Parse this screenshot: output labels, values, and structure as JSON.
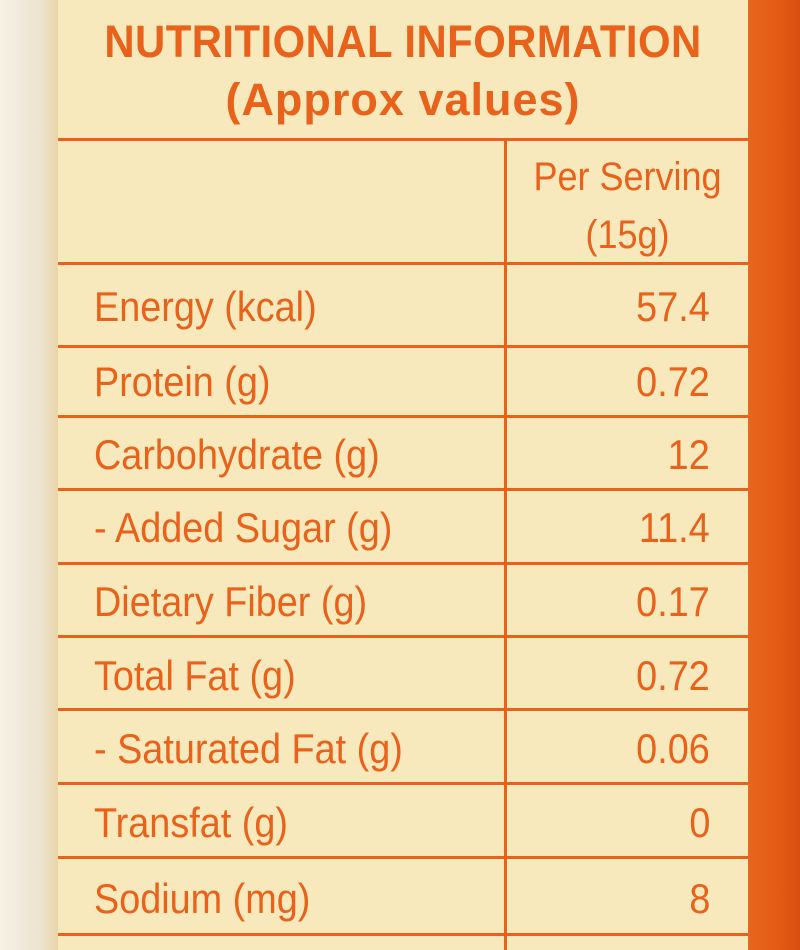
{
  "header": {
    "title": "NUTRITIONAL INFORMATION",
    "subtitle": "(Approx values)"
  },
  "table": {
    "column_header_line1": "Per Serving",
    "column_header_line2": "(15g)",
    "rows": [
      {
        "label": "Energy (kcal)",
        "value": "57.4"
      },
      {
        "label": "Protein (g)",
        "value": "0.72"
      },
      {
        "label": "Carbohydrate (g)",
        "value": "12"
      },
      {
        "label": "- Added Sugar (g)",
        "value": "11.4"
      },
      {
        "label": "Dietary Fiber (g)",
        "value": "0.17"
      },
      {
        "label": "Total Fat (g)",
        "value": "0.72"
      },
      {
        "label": "- Saturated Fat (g)",
        "value": "0.06"
      },
      {
        "label": "Transfat (g)",
        "value": "0"
      },
      {
        "label": "Sodium (mg)",
        "value": "8"
      }
    ]
  },
  "colors": {
    "text": "#e8621c",
    "panel": "#f7e9bc",
    "border": "#e8621c"
  }
}
